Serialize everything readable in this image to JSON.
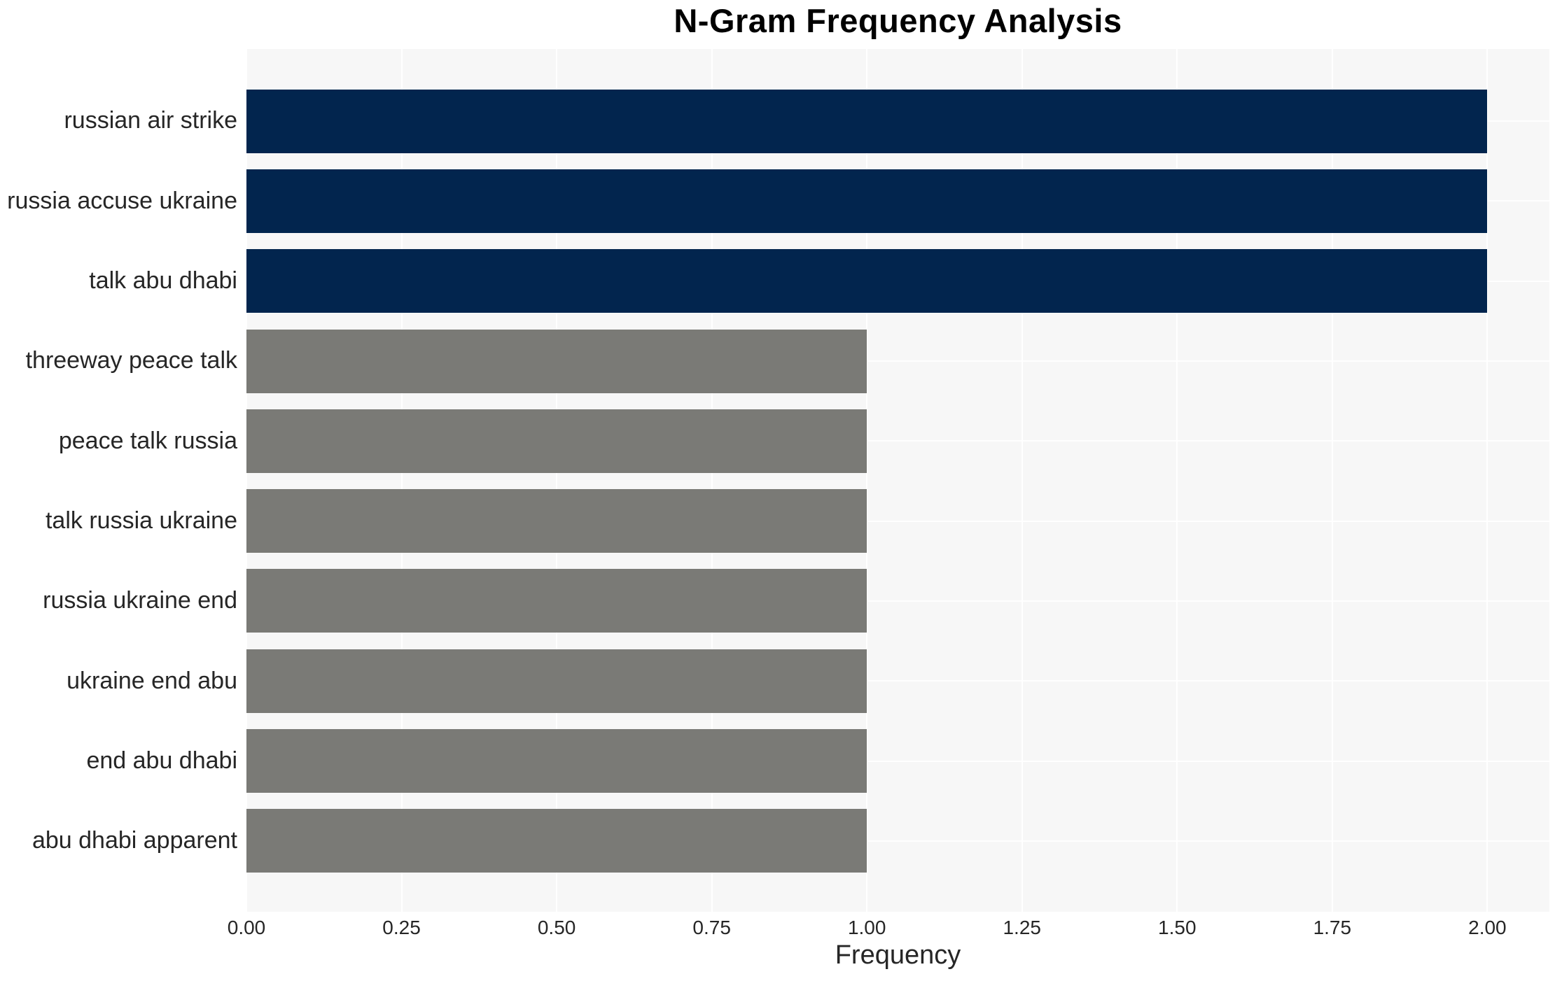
{
  "chart_data": {
    "type": "bar",
    "orientation": "horizontal",
    "title": "N-Gram Frequency Analysis",
    "xlabel": "Frequency",
    "ylabel": "",
    "categories": [
      "russian air strike",
      "russia accuse ukraine",
      "talk abu dhabi",
      "threeway peace talk",
      "peace talk russia",
      "talk russia ukraine",
      "russia ukraine end",
      "ukraine end abu",
      "end abu dhabi",
      "abu dhabi apparent"
    ],
    "values": [
      2,
      2,
      2,
      1,
      1,
      1,
      1,
      1,
      1,
      1
    ],
    "bar_colors": [
      "#02254e",
      "#02254e",
      "#02254e",
      "#7a7a76",
      "#7a7a76",
      "#7a7a76",
      "#7a7a76",
      "#7a7a76",
      "#7a7a76",
      "#7a7a76"
    ],
    "xlim": [
      0,
      2.1
    ],
    "xticks": [
      0,
      0.25,
      0.5,
      0.75,
      1.0,
      1.25,
      1.5,
      1.75,
      2.0
    ],
    "xtick_labels": [
      "0.00",
      "0.25",
      "0.50",
      "0.75",
      "1.00",
      "1.25",
      "1.50",
      "1.75",
      "2.00"
    ],
    "grid": "white gridlines on light-gray panel, both axes, behind bars",
    "legend": "none"
  },
  "colors": {
    "navy_bar": "#02254e",
    "gray_bar": "#7a7a76",
    "plot_background": "#f7f7f7",
    "gridline": "#ffffff",
    "tick_text": "#262626",
    "title_text": "#000000"
  }
}
